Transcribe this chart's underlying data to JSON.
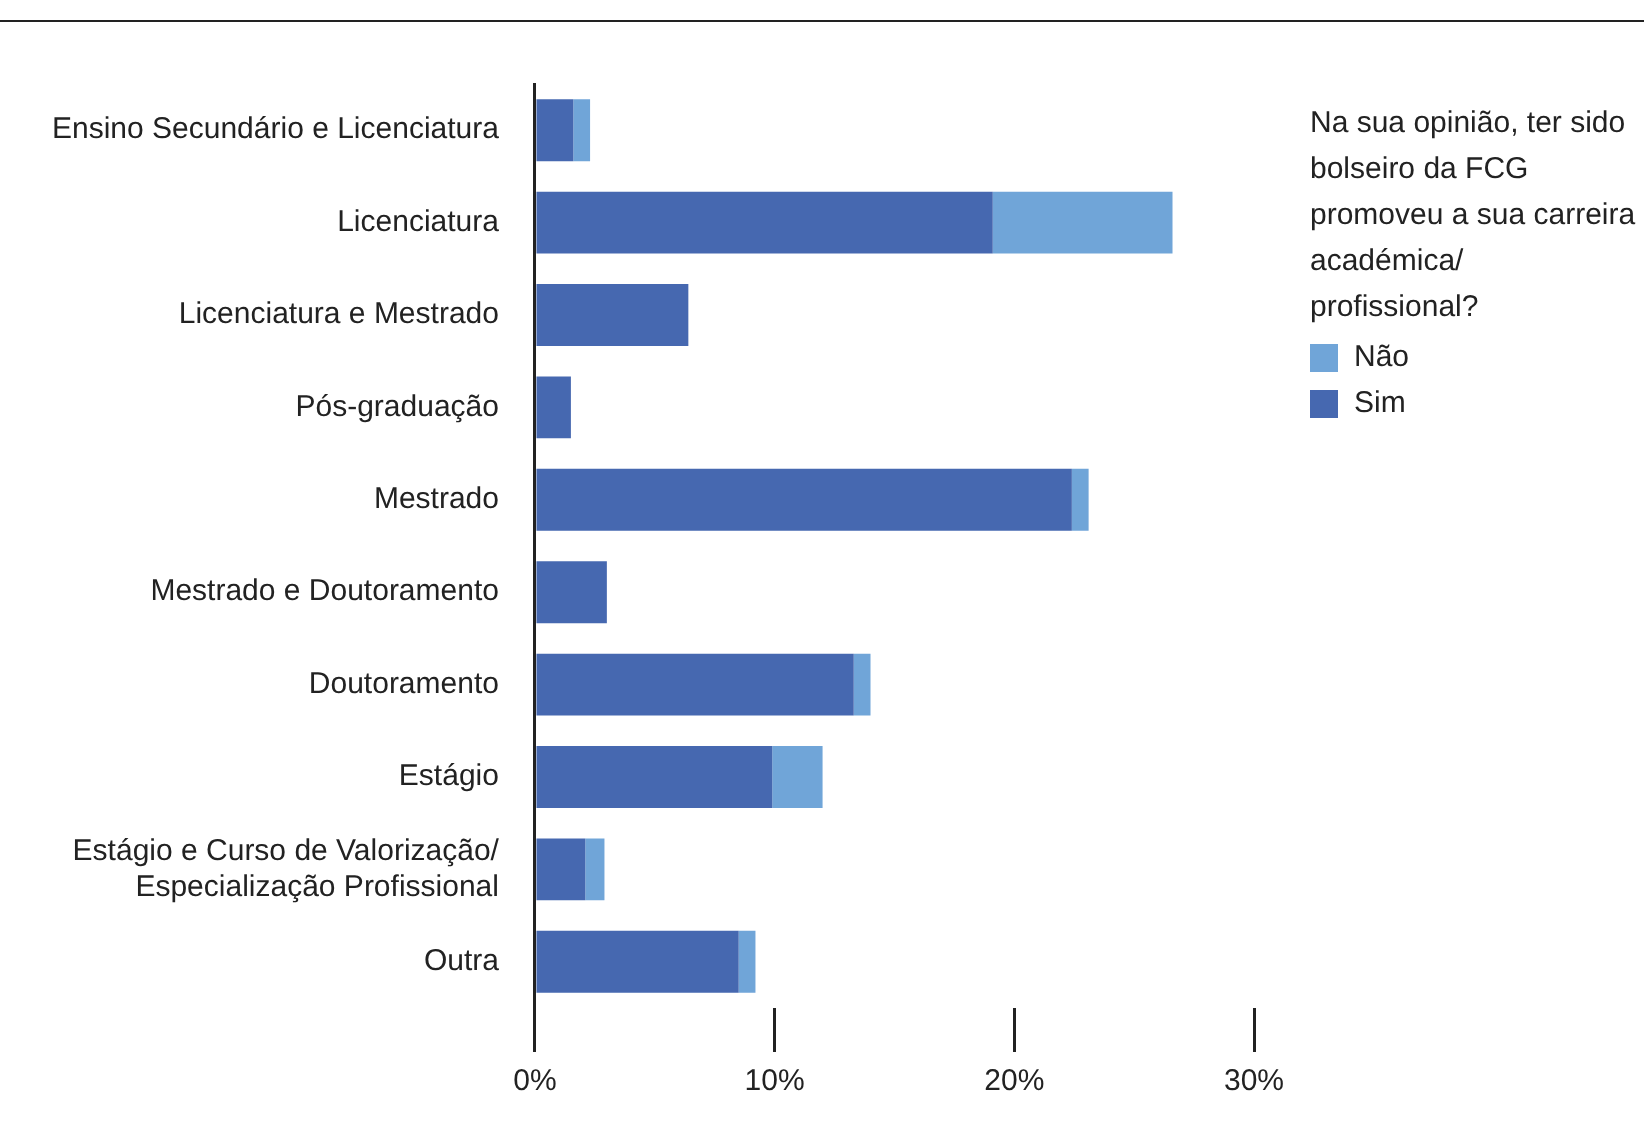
{
  "chart_data": {
    "type": "bar",
    "orientation": "horizontal",
    "stacked": true,
    "categories": [
      "Ensino Secundário e Licenciatura",
      "Licenciatura",
      "Licenciatura e Mestrado",
      "Pós-graduação",
      "Mestrado",
      "Mestrado e Doutoramento",
      "Doutoramento",
      "Estágio",
      "Estágio e Curso de Valorização/ Especialização Profissional",
      "Outra"
    ],
    "series": [
      {
        "name": "Sim",
        "color": "#4668b0",
        "values": [
          1.6,
          19.1,
          6.4,
          1.5,
          22.4,
          3.0,
          13.3,
          9.9,
          2.1,
          8.5
        ]
      },
      {
        "name": "Não",
        "color": "#70a5d8",
        "values": [
          0.7,
          7.5,
          null,
          null,
          0.7,
          null,
          0.7,
          2.1,
          0.8,
          0.7
        ]
      }
    ],
    "legend_title": "Na sua opinião, ter sido bolseiro da FCG promoveu a sua carreira académica/ profissional?",
    "legend": "right",
    "xlim": [
      0,
      30
    ],
    "xticks": [
      {
        "value": 0,
        "label": "0%"
      },
      {
        "value": 10,
        "label": "10%"
      },
      {
        "value": 20,
        "label": "20%"
      },
      {
        "value": 30,
        "label": "30%"
      }
    ],
    "grid": false
  }
}
